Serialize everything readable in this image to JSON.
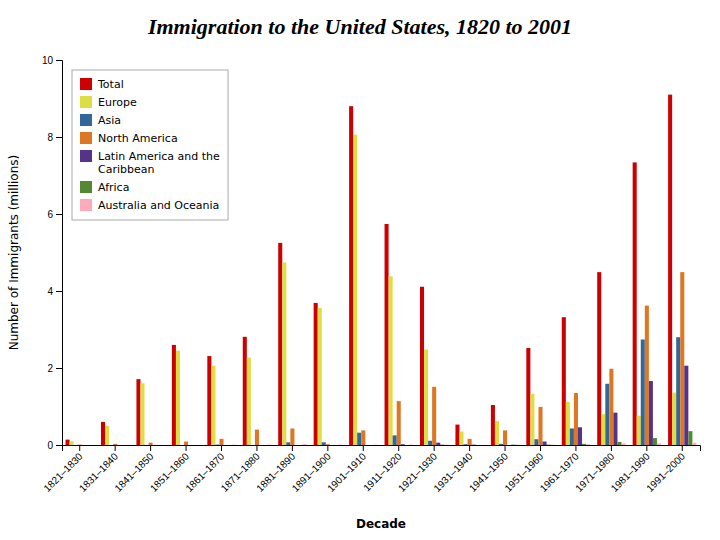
{
  "chart_data": {
    "type": "bar",
    "title": "Immigration to the United States, 1820 to 2001",
    "xlabel": "Decade",
    "ylabel": "Number of Immigrants (millions)",
    "categories": [
      "1821–1830",
      "1831–1840",
      "1841–1850",
      "1851–1860",
      "1861–1870",
      "1871–1880",
      "1881–1890",
      "1891–1900",
      "1901–1910",
      "1911–1920",
      "1921–1930",
      "1931–1940",
      "1941–1950",
      "1951–1960",
      "1961–1970",
      "1971–1980",
      "1981–1990",
      "1991–2000"
    ],
    "series": [
      {
        "name": "Total",
        "color": "#CC0000",
        "values": [
          0.14,
          0.6,
          1.71,
          2.6,
          2.31,
          2.81,
          5.25,
          3.69,
          8.8,
          5.74,
          4.11,
          0.53,
          1.04,
          2.52,
          3.32,
          4.49,
          7.34,
          9.1
        ]
      },
      {
        "name": "Europe",
        "color": "#DDDD44",
        "values": [
          0.1,
          0.5,
          1.6,
          2.45,
          2.06,
          2.27,
          4.74,
          3.56,
          8.06,
          4.38,
          2.48,
          0.35,
          0.62,
          1.33,
          1.12,
          0.8,
          0.76,
          1.36
        ]
      },
      {
        "name": "Asia",
        "color": "#336699",
        "values": [
          0.0,
          0.0,
          0.0,
          0.0,
          0.01,
          0.0,
          0.07,
          0.07,
          0.32,
          0.25,
          0.11,
          0.02,
          0.03,
          0.15,
          0.43,
          1.59,
          2.74,
          2.8
        ]
      },
      {
        "name": "North America",
        "color": "#DD7722",
        "values": [
          0.01,
          0.03,
          0.06,
          0.09,
          0.16,
          0.4,
          0.43,
          0.02,
          0.38,
          1.14,
          1.51,
          0.16,
          0.38,
          0.99,
          1.35,
          1.98,
          3.62,
          4.49
        ]
      },
      {
        "name": "Latin America and the\nCaribbean",
        "color": "#553388",
        "values": [
          0.0,
          0.0,
          0.0,
          0.0,
          0.0,
          0.0,
          0.0,
          0.0,
          0.0,
          0.02,
          0.06,
          0.01,
          0.0,
          0.09,
          0.46,
          0.84,
          1.66,
          2.06
        ]
      },
      {
        "name": "Africa",
        "color": "#558833",
        "values": [
          0.0,
          0.0,
          0.0,
          0.0,
          0.0,
          0.0,
          0.0,
          0.0,
          0.0,
          0.0,
          0.01,
          0.0,
          0.01,
          0.01,
          0.03,
          0.08,
          0.18,
          0.36
        ]
      },
      {
        "name": "Australia and Oceania",
        "color": "#FFAABB",
        "values": [
          0.0,
          0.0,
          0.0,
          0.0,
          0.01,
          0.01,
          0.02,
          0.01,
          0.01,
          0.01,
          0.01,
          0.0,
          0.01,
          0.01,
          0.02,
          0.04,
          0.04,
          0.06
        ]
      }
    ],
    "ylim": [
      0,
      10
    ],
    "yticks": [
      0,
      2,
      4,
      6,
      8,
      10
    ],
    "grid": false,
    "legend": "upper left"
  }
}
